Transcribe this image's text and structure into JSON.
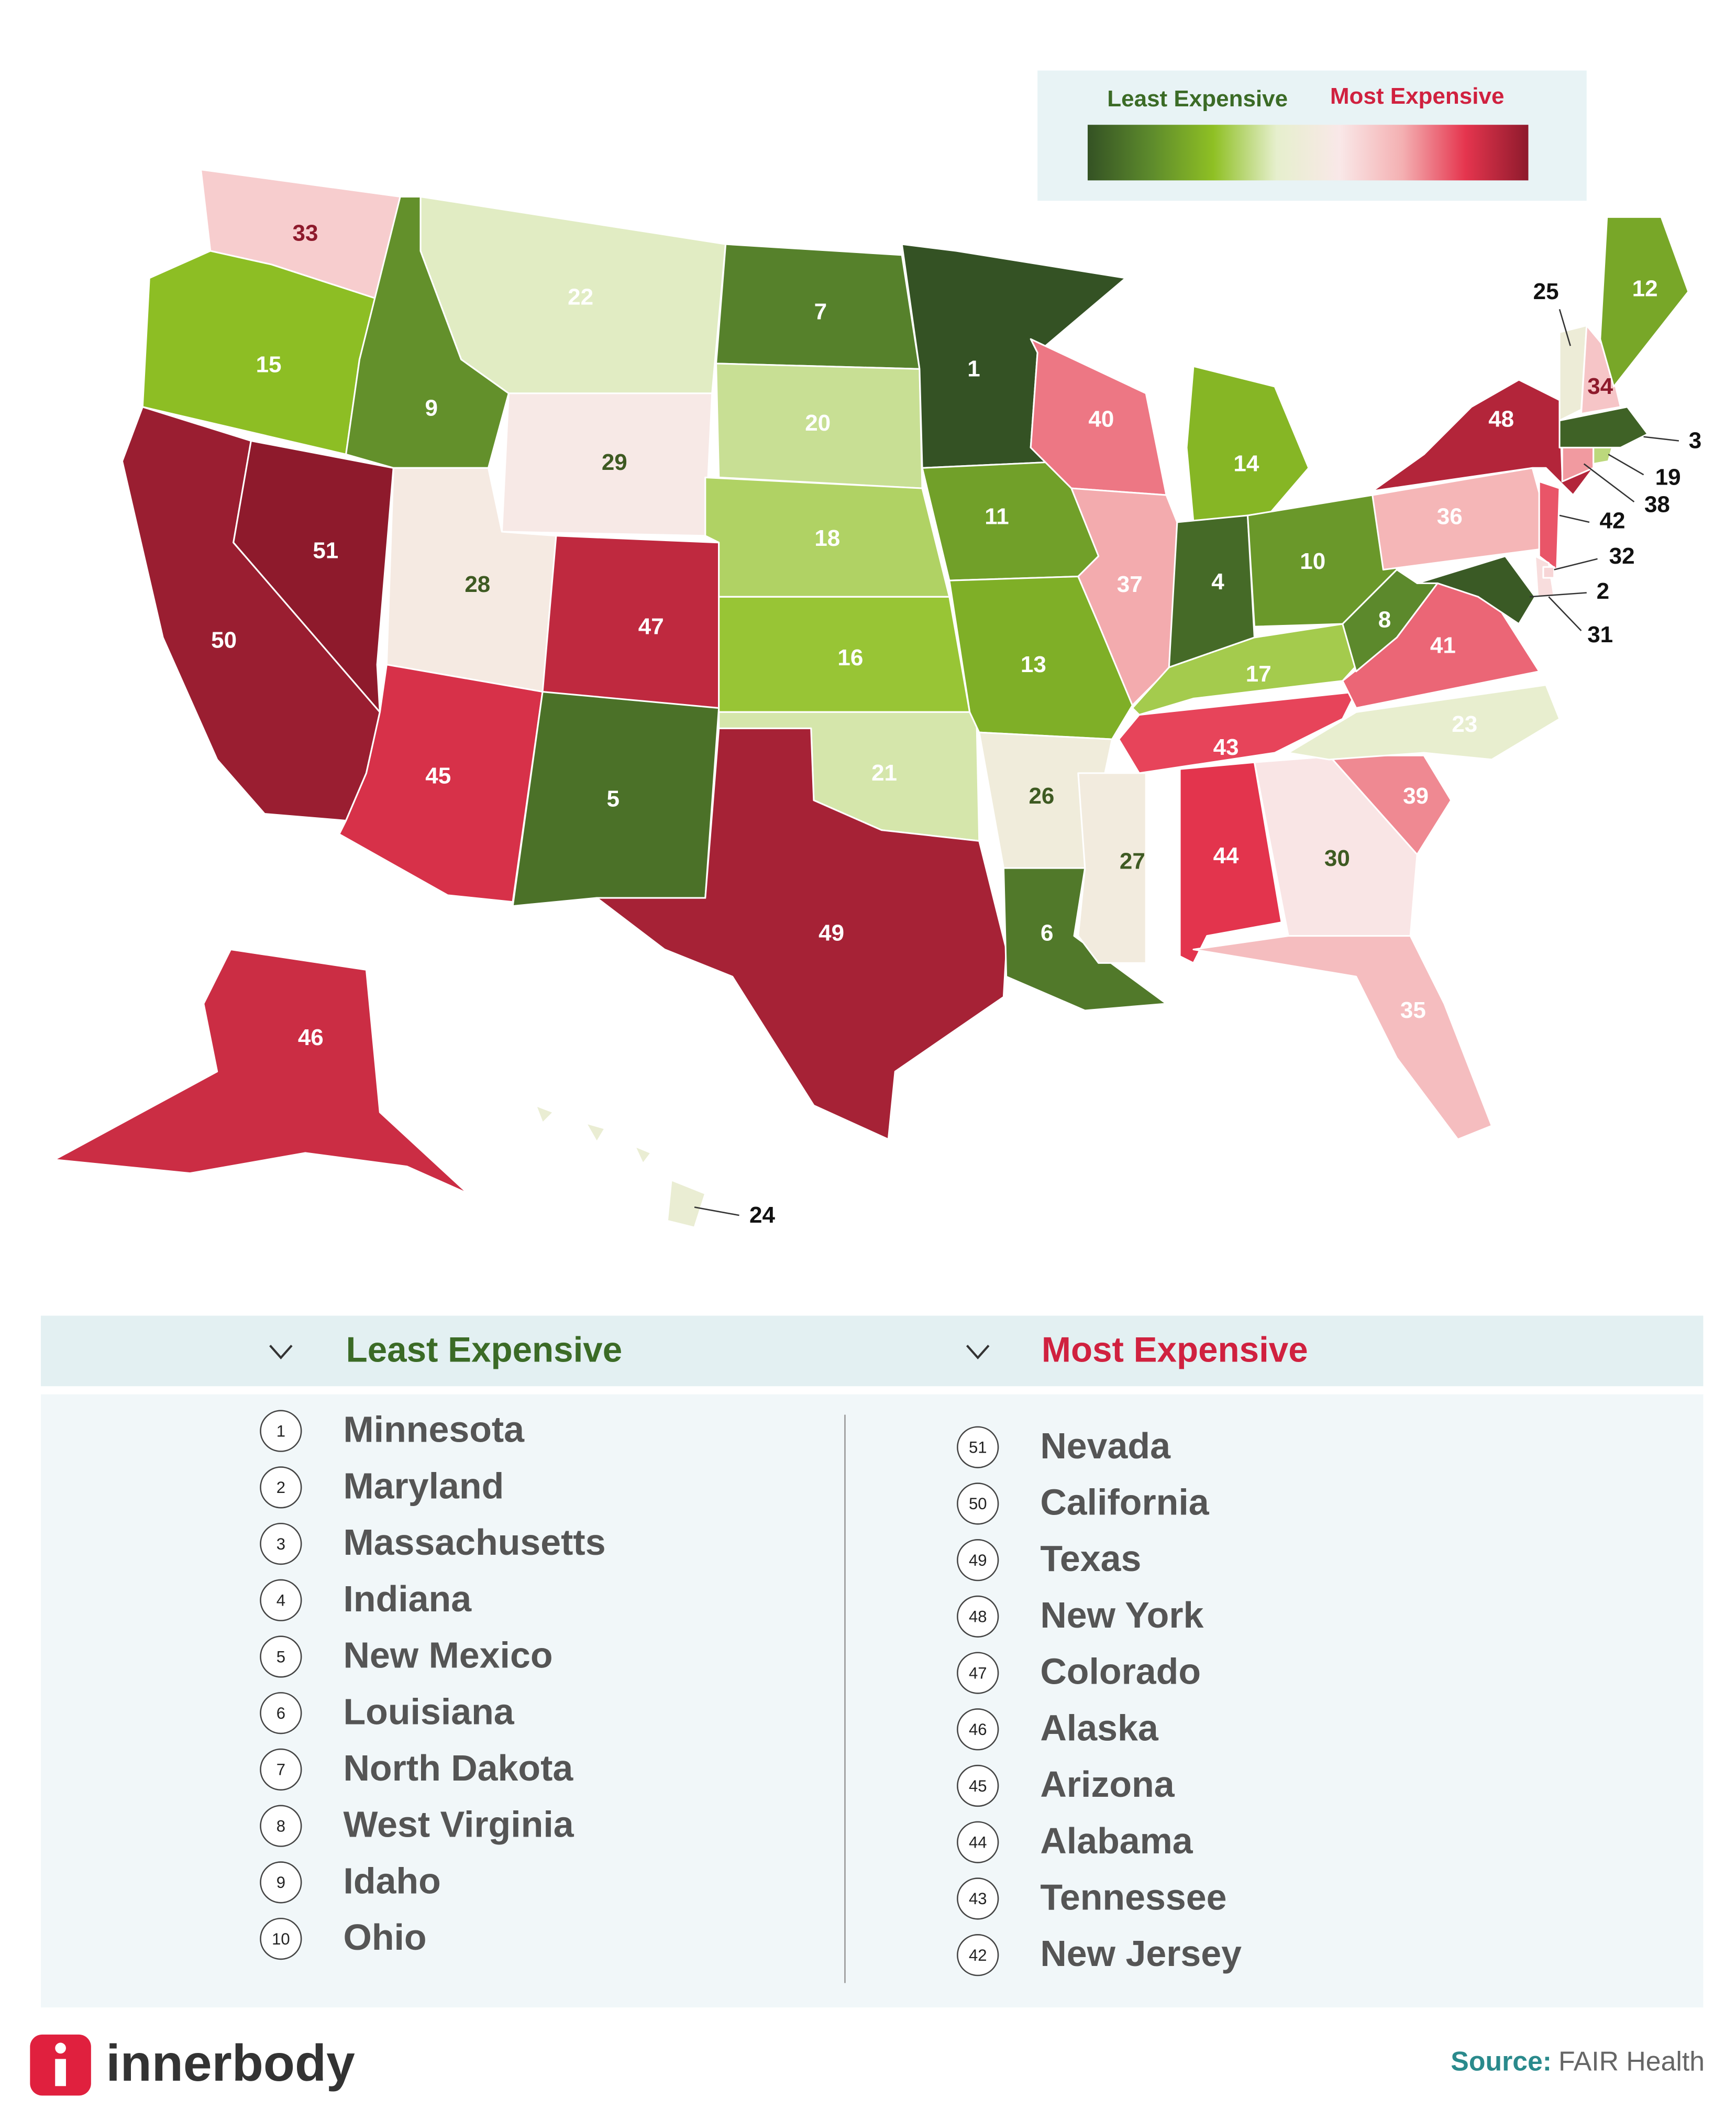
{
  "legend": {
    "low_label": "Least Expensive",
    "high_label": "Most Expensive",
    "scale_colors": [
      "#345224",
      "#5d8a2c",
      "#8fc024",
      "#e6efcd",
      "#f9e8e8",
      "#f4b0b2",
      "#e5354e",
      "#8e1a2c"
    ]
  },
  "map": {
    "labels": [
      {
        "rank": 33
      },
      {
        "rank": 15
      },
      {
        "rank": 50
      },
      {
        "rank": 51
      },
      {
        "rank": 9
      },
      {
        "rank": 22
      },
      {
        "rank": 29
      },
      {
        "rank": 28
      },
      {
        "rank": 47
      },
      {
        "rank": 45
      },
      {
        "rank": 5
      },
      {
        "rank": 7
      },
      {
        "rank": 20
      },
      {
        "rank": 18
      },
      {
        "rank": 16
      },
      {
        "rank": 21
      },
      {
        "rank": 49
      },
      {
        "rank": 1
      },
      {
        "rank": 11
      },
      {
        "rank": 13
      },
      {
        "rank": 26
      },
      {
        "rank": 6
      },
      {
        "rank": 40
      },
      {
        "rank": 14
      },
      {
        "rank": 37
      },
      {
        "rank": 4
      },
      {
        "rank": 10
      },
      {
        "rank": 17
      },
      {
        "rank": 43
      },
      {
        "rank": 27
      },
      {
        "rank": 44
      },
      {
        "rank": 30
      },
      {
        "rank": 35
      },
      {
        "rank": 39
      },
      {
        "rank": 23
      },
      {
        "rank": 41
      },
      {
        "rank": 8
      },
      {
        "rank": 36
      },
      {
        "rank": 48
      },
      {
        "rank": 42
      },
      {
        "rank": 2
      },
      {
        "rank": 31
      },
      {
        "rank": 38
      },
      {
        "rank": 19
      },
      {
        "rank": 3
      },
      {
        "rank": 25
      },
      {
        "rank": 34
      },
      {
        "rank": 12
      },
      {
        "rank": 46
      },
      {
        "rank": 24
      },
      {
        "rank": 32
      }
    ]
  },
  "ranking": {
    "left": {
      "heading": "Least Expensive",
      "items": [
        {
          "rank": 1,
          "name": "Minnesota"
        },
        {
          "rank": 2,
          "name": "Maryland"
        },
        {
          "rank": 3,
          "name": "Massachusetts"
        },
        {
          "rank": 4,
          "name": "Indiana"
        },
        {
          "rank": 5,
          "name": "New Mexico"
        },
        {
          "rank": 6,
          "name": "Louisiana"
        },
        {
          "rank": 7,
          "name": "North Dakota"
        },
        {
          "rank": 8,
          "name": "West Virginia"
        },
        {
          "rank": 9,
          "name": "Idaho"
        },
        {
          "rank": 10,
          "name": "Ohio"
        }
      ]
    },
    "right": {
      "heading": "Most Expensive",
      "items": [
        {
          "rank": 51,
          "name": "Nevada"
        },
        {
          "rank": 50,
          "name": "California"
        },
        {
          "rank": 49,
          "name": "Texas"
        },
        {
          "rank": 48,
          "name": "New York"
        },
        {
          "rank": 47,
          "name": "Colorado"
        },
        {
          "rank": 46,
          "name": "Alaska"
        },
        {
          "rank": 45,
          "name": "Arizona"
        },
        {
          "rank": 44,
          "name": "Alabama"
        },
        {
          "rank": 43,
          "name": "Tennessee"
        },
        {
          "rank": 42,
          "name": "New Jersey"
        }
      ]
    }
  },
  "footer": {
    "logo": "innerbody",
    "source_label": "Source:",
    "source": "FAIR Health"
  }
}
